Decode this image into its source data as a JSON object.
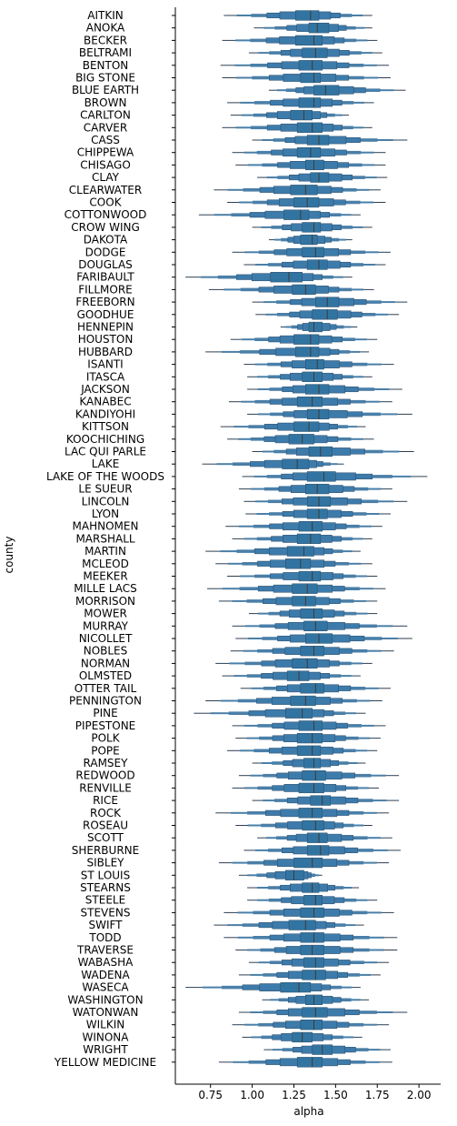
{
  "chart_data": {
    "type": "boxen",
    "orientation": "horizontal",
    "xlabel": "alpha",
    "ylabel": "county",
    "xlim": [
      0.55,
      2.13
    ],
    "xticks": [
      0.75,
      1.0,
      1.25,
      1.5,
      1.75,
      2.0
    ],
    "xtick_labels": [
      "0.75",
      "1.00",
      "1.25",
      "1.50",
      "1.75",
      "2.00"
    ],
    "color": "#3274a1",
    "series": [
      {
        "county": "AITKIN",
        "median": 1.35,
        "q1": 1.26,
        "q3": 1.4,
        "min": 0.83,
        "max": 1.72
      },
      {
        "county": "ANOKA",
        "median": 1.39,
        "q1": 1.34,
        "q3": 1.46,
        "min": 1.01,
        "max": 1.72
      },
      {
        "county": "BECKER",
        "median": 1.37,
        "q1": 1.26,
        "q3": 1.42,
        "min": 0.82,
        "max": 1.75
      },
      {
        "county": "BELTRAMI",
        "median": 1.38,
        "q1": 1.3,
        "q3": 1.45,
        "min": 0.98,
        "max": 1.78
      },
      {
        "county": "BENTON",
        "median": 1.36,
        "q1": 1.28,
        "q3": 1.42,
        "min": 0.81,
        "max": 1.82
      },
      {
        "county": "BIG STONE",
        "median": 1.37,
        "q1": 1.29,
        "q3": 1.41,
        "min": 0.82,
        "max": 1.83
      },
      {
        "county": "BLUE EARTH",
        "median": 1.44,
        "q1": 1.37,
        "q3": 1.52,
        "min": 1.1,
        "max": 1.92
      },
      {
        "county": "BROWN",
        "median": 1.37,
        "q1": 1.28,
        "q3": 1.41,
        "min": 0.85,
        "max": 1.73
      },
      {
        "county": "CARLTON",
        "median": 1.31,
        "q1": 1.23,
        "q3": 1.36,
        "min": 0.87,
        "max": 1.58
      },
      {
        "county": "CARVER",
        "median": 1.36,
        "q1": 1.27,
        "q3": 1.42,
        "min": 0.82,
        "max": 1.72
      },
      {
        "county": "CASS",
        "median": 1.4,
        "q1": 1.33,
        "q3": 1.46,
        "min": 1.0,
        "max": 1.93
      },
      {
        "county": "CHIPPEWA",
        "median": 1.35,
        "q1": 1.27,
        "q3": 1.41,
        "min": 0.88,
        "max": 1.8
      },
      {
        "county": "CHISAGO",
        "median": 1.37,
        "q1": 1.32,
        "q3": 1.43,
        "min": 0.9,
        "max": 1.8
      },
      {
        "county": "CLAY",
        "median": 1.4,
        "q1": 1.35,
        "q3": 1.46,
        "min": 1.03,
        "max": 1.81
      },
      {
        "county": "CLEARWATER",
        "median": 1.32,
        "q1": 1.23,
        "q3": 1.39,
        "min": 0.77,
        "max": 1.77
      },
      {
        "county": "COOK",
        "median": 1.33,
        "q1": 1.25,
        "q3": 1.4,
        "min": 0.85,
        "max": 1.8
      },
      {
        "county": "COTTONWOOD",
        "median": 1.29,
        "q1": 1.19,
        "q3": 1.34,
        "min": 0.68,
        "max": 1.65
      },
      {
        "county": "CROW WING",
        "median": 1.37,
        "q1": 1.3,
        "q3": 1.41,
        "min": 1.0,
        "max": 1.72
      },
      {
        "county": "DAKOTA",
        "median": 1.36,
        "q1": 1.29,
        "q3": 1.39,
        "min": 1.1,
        "max": 1.6
      },
      {
        "county": "DODGE",
        "median": 1.38,
        "q1": 1.3,
        "q3": 1.43,
        "min": 0.88,
        "max": 1.83
      },
      {
        "county": "DOUGLAS",
        "median": 1.4,
        "q1": 1.33,
        "q3": 1.45,
        "min": 0.95,
        "max": 1.8
      },
      {
        "county": "FARIBAULT",
        "median": 1.22,
        "q1": 1.11,
        "q3": 1.3,
        "min": 0.6,
        "max": 1.6
      },
      {
        "county": "FILLMORE",
        "median": 1.32,
        "q1": 1.24,
        "q3": 1.38,
        "min": 0.74,
        "max": 1.73
      },
      {
        "county": "FREEBORN",
        "median": 1.45,
        "q1": 1.38,
        "q3": 1.52,
        "min": 1.0,
        "max": 1.93
      },
      {
        "county": "GOODHUE",
        "median": 1.45,
        "q1": 1.36,
        "q3": 1.51,
        "min": 1.02,
        "max": 1.88
      },
      {
        "county": "HENNEPIN",
        "median": 1.37,
        "q1": 1.34,
        "q3": 1.42,
        "min": 1.17,
        "max": 1.63
      },
      {
        "county": "HOUSTON",
        "median": 1.35,
        "q1": 1.25,
        "q3": 1.4,
        "min": 0.87,
        "max": 1.75
      },
      {
        "county": "HUBBARD",
        "median": 1.35,
        "q1": 1.26,
        "q3": 1.4,
        "min": 0.72,
        "max": 1.7
      },
      {
        "county": "ISANTI",
        "median": 1.39,
        "q1": 1.32,
        "q3": 1.43,
        "min": 0.95,
        "max": 1.85
      },
      {
        "county": "ITASCA",
        "median": 1.37,
        "q1": 1.3,
        "q3": 1.42,
        "min": 0.97,
        "max": 1.72
      },
      {
        "county": "JACKSON",
        "median": 1.4,
        "q1": 1.32,
        "q3": 1.46,
        "min": 0.97,
        "max": 1.9
      },
      {
        "county": "KANABEC",
        "median": 1.36,
        "q1": 1.27,
        "q3": 1.42,
        "min": 0.86,
        "max": 1.84
      },
      {
        "county": "KANDIYOHI",
        "median": 1.4,
        "q1": 1.33,
        "q3": 1.46,
        "min": 0.97,
        "max": 1.96
      },
      {
        "county": "KITTSON",
        "median": 1.34,
        "q1": 1.25,
        "q3": 1.4,
        "min": 0.81,
        "max": 1.68
      },
      {
        "county": "KOOCHICHING",
        "median": 1.3,
        "q1": 1.22,
        "q3": 1.37,
        "min": 0.85,
        "max": 1.73
      },
      {
        "county": "LAC QUI PARLE",
        "median": 1.41,
        "q1": 1.34,
        "q3": 1.48,
        "min": 1.0,
        "max": 1.97
      },
      {
        "county": "LAKE",
        "median": 1.27,
        "q1": 1.18,
        "q3": 1.34,
        "min": 0.7,
        "max": 1.55
      },
      {
        "county": "LAKE OF THE WOODS",
        "median": 1.43,
        "q1": 1.33,
        "q3": 1.5,
        "min": 0.94,
        "max": 2.05
      },
      {
        "county": "LE SUEUR",
        "median": 1.39,
        "q1": 1.32,
        "q3": 1.46,
        "min": 0.92,
        "max": 1.84
      },
      {
        "county": "LINCOLN",
        "median": 1.4,
        "q1": 1.33,
        "q3": 1.47,
        "min": 0.95,
        "max": 1.93
      },
      {
        "county": "LYON",
        "median": 1.4,
        "q1": 1.33,
        "q3": 1.45,
        "min": 0.96,
        "max": 1.83
      },
      {
        "county": "MAHNOMEN",
        "median": 1.36,
        "q1": 1.28,
        "q3": 1.42,
        "min": 0.84,
        "max": 1.78
      },
      {
        "county": "MARSHALL",
        "median": 1.35,
        "q1": 1.27,
        "q3": 1.41,
        "min": 0.88,
        "max": 1.72
      },
      {
        "county": "MARTIN",
        "median": 1.31,
        "q1": 1.21,
        "q3": 1.37,
        "min": 0.72,
        "max": 1.65
      },
      {
        "county": "MCLEOD",
        "median": 1.29,
        "q1": 1.2,
        "q3": 1.35,
        "min": 0.78,
        "max": 1.72
      },
      {
        "county": "MEEKER",
        "median": 1.36,
        "q1": 1.28,
        "q3": 1.41,
        "min": 0.85,
        "max": 1.75
      },
      {
        "county": "MILLE LACS",
        "median": 1.33,
        "q1": 1.24,
        "q3": 1.39,
        "min": 0.73,
        "max": 1.8
      },
      {
        "county": "MORRISON",
        "median": 1.32,
        "q1": 1.24,
        "q3": 1.38,
        "min": 0.8,
        "max": 1.75
      },
      {
        "county": "MOWER",
        "median": 1.37,
        "q1": 1.29,
        "q3": 1.42,
        "min": 0.98,
        "max": 1.75
      },
      {
        "county": "MURRAY",
        "median": 1.38,
        "q1": 1.31,
        "q3": 1.45,
        "min": 0.88,
        "max": 1.93
      },
      {
        "county": "NICOLLET",
        "median": 1.4,
        "q1": 1.32,
        "q3": 1.48,
        "min": 0.9,
        "max": 1.96
      },
      {
        "county": "NOBLES",
        "median": 1.37,
        "q1": 1.29,
        "q3": 1.43,
        "min": 0.87,
        "max": 1.85
      },
      {
        "county": "NORMAN",
        "median": 1.33,
        "q1": 1.24,
        "q3": 1.39,
        "min": 0.78,
        "max": 1.72
      },
      {
        "county": "OLMSTED",
        "median": 1.28,
        "q1": 1.21,
        "q3": 1.34,
        "min": 0.82,
        "max": 1.65
      },
      {
        "county": "OTTER TAIL",
        "median": 1.38,
        "q1": 1.29,
        "q3": 1.43,
        "min": 0.93,
        "max": 1.83
      },
      {
        "county": "PENNINGTON",
        "median": 1.32,
        "q1": 1.23,
        "q3": 1.38,
        "min": 0.72,
        "max": 1.78
      },
      {
        "county": "PINE",
        "median": 1.3,
        "q1": 1.2,
        "q3": 1.36,
        "min": 0.65,
        "max": 1.68
      },
      {
        "county": "PIPESTONE",
        "median": 1.37,
        "q1": 1.28,
        "q3": 1.42,
        "min": 0.88,
        "max": 1.8
      },
      {
        "county": "POLK",
        "median": 1.36,
        "q1": 1.27,
        "q3": 1.42,
        "min": 0.9,
        "max": 1.77
      },
      {
        "county": "POPE",
        "median": 1.36,
        "q1": 1.27,
        "q3": 1.41,
        "min": 0.85,
        "max": 1.75
      },
      {
        "county": "RAMSEY",
        "median": 1.37,
        "q1": 1.31,
        "q3": 1.41,
        "min": 1.0,
        "max": 1.68
      },
      {
        "county": "REDWOOD",
        "median": 1.38,
        "q1": 1.3,
        "q3": 1.44,
        "min": 0.92,
        "max": 1.88
      },
      {
        "county": "RENVILLE",
        "median": 1.37,
        "q1": 1.28,
        "q3": 1.43,
        "min": 0.88,
        "max": 1.76
      },
      {
        "county": "RICE",
        "median": 1.42,
        "q1": 1.35,
        "q3": 1.47,
        "min": 1.0,
        "max": 1.88
      },
      {
        "county": "ROCK",
        "median": 1.36,
        "q1": 1.28,
        "q3": 1.42,
        "min": 0.78,
        "max": 1.82
      },
      {
        "county": "ROSEAU",
        "median": 1.38,
        "q1": 1.3,
        "q3": 1.43,
        "min": 0.9,
        "max": 1.72
      },
      {
        "county": "SCOTT",
        "median": 1.4,
        "q1": 1.33,
        "q3": 1.45,
        "min": 1.03,
        "max": 1.84
      },
      {
        "county": "SHERBURNE",
        "median": 1.41,
        "q1": 1.33,
        "q3": 1.46,
        "min": 0.95,
        "max": 1.89
      },
      {
        "county": "SIBLEY",
        "median": 1.36,
        "q1": 1.25,
        "q3": 1.42,
        "min": 0.8,
        "max": 1.82
      },
      {
        "county": "ST LOUIS",
        "median": 1.25,
        "q1": 1.2,
        "q3": 1.31,
        "min": 0.92,
        "max": 1.42
      },
      {
        "county": "STEARNS",
        "median": 1.36,
        "q1": 1.3,
        "q3": 1.4,
        "min": 0.97,
        "max": 1.64
      },
      {
        "county": "STEELE",
        "median": 1.38,
        "q1": 1.31,
        "q3": 1.42,
        "min": 0.97,
        "max": 1.75
      },
      {
        "county": "STEVENS",
        "median": 1.37,
        "q1": 1.29,
        "q3": 1.43,
        "min": 0.83,
        "max": 1.85
      },
      {
        "county": "SWIFT",
        "median": 1.32,
        "q1": 1.22,
        "q3": 1.38,
        "min": 0.77,
        "max": 1.67
      },
      {
        "county": "TODD",
        "median": 1.37,
        "q1": 1.29,
        "q3": 1.43,
        "min": 0.83,
        "max": 1.87
      },
      {
        "county": "TRAVERSE",
        "median": 1.36,
        "q1": 1.29,
        "q3": 1.43,
        "min": 0.9,
        "max": 1.87
      },
      {
        "county": "WABASHA",
        "median": 1.38,
        "q1": 1.31,
        "q3": 1.43,
        "min": 0.98,
        "max": 1.82
      },
      {
        "county": "WADENA",
        "median": 1.38,
        "q1": 1.3,
        "q3": 1.44,
        "min": 0.92,
        "max": 1.77
      },
      {
        "county": "WASECA",
        "median": 1.28,
        "q1": 1.17,
        "q3": 1.35,
        "min": 0.6,
        "max": 1.65
      },
      {
        "county": "WASHINGTON",
        "median": 1.37,
        "q1": 1.32,
        "q3": 1.42,
        "min": 1.06,
        "max": 1.7
      },
      {
        "county": "WATONWAN",
        "median": 1.38,
        "q1": 1.3,
        "q3": 1.45,
        "min": 0.92,
        "max": 1.93
      },
      {
        "county": "WILKIN",
        "median": 1.37,
        "q1": 1.29,
        "q3": 1.42,
        "min": 0.88,
        "max": 1.82
      },
      {
        "county": "WINONA",
        "median": 1.3,
        "q1": 1.24,
        "q3": 1.36,
        "min": 0.94,
        "max": 1.66
      },
      {
        "county": "WRIGHT",
        "median": 1.42,
        "q1": 1.36,
        "q3": 1.48,
        "min": 1.07,
        "max": 1.83
      },
      {
        "county": "YELLOW MEDICINE",
        "median": 1.36,
        "q1": 1.27,
        "q3": 1.42,
        "min": 0.8,
        "max": 1.84
      }
    ]
  }
}
